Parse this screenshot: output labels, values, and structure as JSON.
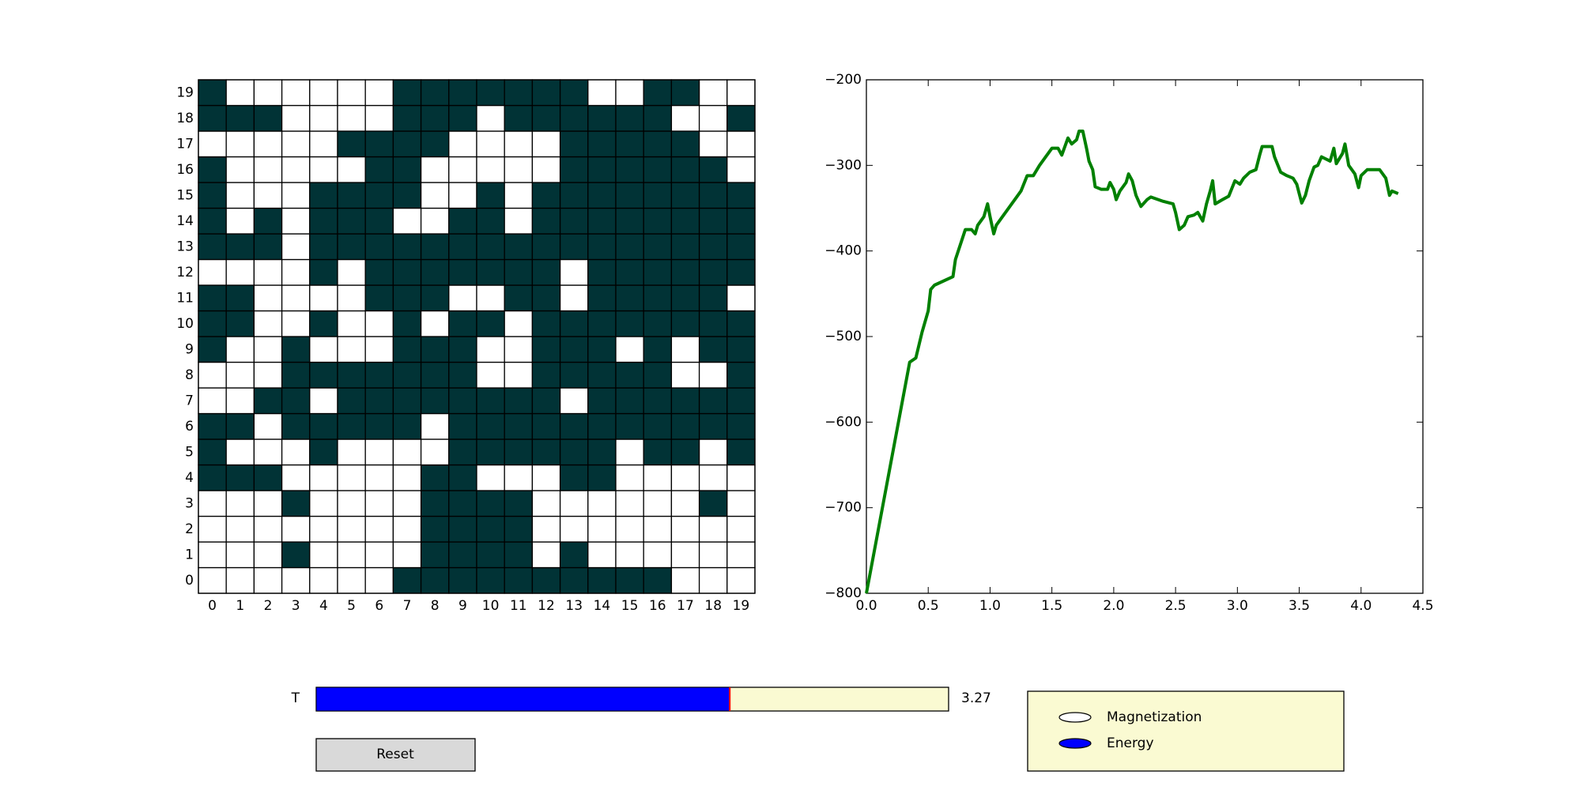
{
  "spin_grid": {
    "ticks": [
      0,
      1,
      2,
      3,
      4,
      5,
      6,
      7,
      8,
      9,
      10,
      11,
      12,
      13,
      14,
      15,
      16,
      17,
      18,
      19
    ],
    "up_color": "#013336",
    "down_color": "#ffffff",
    "rows": [
      [
        -1,
        -1,
        -1,
        -1,
        -1,
        -1,
        -1,
        1,
        1,
        1,
        1,
        1,
        1,
        1,
        1,
        1,
        1,
        -1,
        -1,
        -1
      ],
      [
        -1,
        -1,
        -1,
        1,
        -1,
        -1,
        -1,
        -1,
        1,
        1,
        1,
        1,
        -1,
        1,
        -1,
        -1,
        -1,
        -1,
        -1,
        -1
      ],
      [
        -1,
        -1,
        -1,
        -1,
        -1,
        -1,
        -1,
        -1,
        1,
        1,
        1,
        1,
        -1,
        -1,
        -1,
        -1,
        -1,
        -1,
        -1,
        -1
      ],
      [
        -1,
        -1,
        -1,
        1,
        -1,
        -1,
        -1,
        -1,
        1,
        1,
        1,
        1,
        -1,
        -1,
        -1,
        -1,
        -1,
        -1,
        1,
        -1
      ],
      [
        1,
        1,
        1,
        -1,
        -1,
        -1,
        -1,
        -1,
        1,
        1,
        -1,
        -1,
        -1,
        1,
        1,
        -1,
        -1,
        -1,
        -1,
        -1
      ],
      [
        1,
        -1,
        -1,
        -1,
        1,
        -1,
        -1,
        -1,
        -1,
        1,
        1,
        1,
        1,
        1,
        1,
        -1,
        1,
        1,
        -1,
        1
      ],
      [
        1,
        1,
        -1,
        1,
        1,
        1,
        1,
        1,
        -1,
        1,
        1,
        1,
        1,
        1,
        1,
        1,
        1,
        1,
        1,
        1
      ],
      [
        -1,
        -1,
        1,
        1,
        -1,
        1,
        1,
        1,
        1,
        1,
        1,
        1,
        1,
        -1,
        1,
        1,
        1,
        1,
        1,
        1
      ],
      [
        -1,
        -1,
        -1,
        1,
        1,
        1,
        1,
        1,
        1,
        1,
        -1,
        -1,
        1,
        1,
        1,
        1,
        1,
        -1,
        -1,
        1
      ],
      [
        1,
        -1,
        -1,
        1,
        -1,
        -1,
        -1,
        1,
        1,
        1,
        -1,
        -1,
        1,
        1,
        1,
        -1,
        1,
        -1,
        1,
        1
      ],
      [
        1,
        1,
        -1,
        -1,
        1,
        -1,
        -1,
        1,
        -1,
        1,
        1,
        -1,
        1,
        1,
        1,
        1,
        1,
        1,
        1,
        1
      ],
      [
        1,
        1,
        -1,
        -1,
        -1,
        -1,
        1,
        1,
        1,
        -1,
        -1,
        1,
        1,
        -1,
        1,
        1,
        1,
        1,
        1,
        -1
      ],
      [
        -1,
        -1,
        -1,
        -1,
        1,
        -1,
        1,
        1,
        1,
        1,
        1,
        1,
        1,
        -1,
        1,
        1,
        1,
        1,
        1,
        1
      ],
      [
        1,
        1,
        1,
        -1,
        1,
        1,
        1,
        1,
        1,
        1,
        1,
        1,
        1,
        1,
        1,
        1,
        1,
        1,
        1,
        1
      ],
      [
        1,
        -1,
        1,
        -1,
        1,
        1,
        1,
        -1,
        -1,
        1,
        1,
        -1,
        1,
        1,
        1,
        1,
        1,
        1,
        1,
        1
      ],
      [
        1,
        -1,
        -1,
        -1,
        1,
        1,
        1,
        1,
        -1,
        -1,
        1,
        -1,
        1,
        1,
        1,
        1,
        1,
        1,
        1,
        1
      ],
      [
        1,
        -1,
        -1,
        -1,
        -1,
        -1,
        1,
        1,
        -1,
        -1,
        -1,
        -1,
        -1,
        1,
        1,
        1,
        1,
        1,
        1,
        -1
      ],
      [
        -1,
        -1,
        -1,
        -1,
        -1,
        1,
        1,
        1,
        1,
        -1,
        -1,
        -1,
        -1,
        1,
        1,
        1,
        1,
        1,
        -1,
        -1
      ],
      [
        1,
        1,
        1,
        -1,
        -1,
        -1,
        -1,
        1,
        1,
        1,
        -1,
        1,
        1,
        1,
        1,
        1,
        1,
        -1,
        -1,
        1
      ],
      [
        1,
        -1,
        -1,
        -1,
        -1,
        -1,
        -1,
        1,
        1,
        1,
        1,
        1,
        1,
        1,
        -1,
        -1,
        1,
        1,
        -1,
        -1
      ]
    ]
  },
  "chart_data": {
    "type": "line",
    "color": "#008000",
    "x": [
      0,
      0.35,
      0.4,
      0.45,
      0.5,
      0.52,
      0.55,
      0.7,
      0.72,
      0.8,
      0.85,
      0.88,
      0.9,
      0.95,
      0.98,
      1.0,
      1.03,
      1.05,
      1.1,
      1.2,
      1.25,
      1.3,
      1.35,
      1.4,
      1.5,
      1.55,
      1.58,
      1.63,
      1.66,
      1.7,
      1.72,
      1.75,
      1.78,
      1.8,
      1.83,
      1.85,
      1.9,
      1.95,
      1.97,
      2.0,
      2.02,
      2.05,
      2.1,
      2.12,
      2.15,
      2.18,
      2.22,
      2.27,
      2.3,
      2.4,
      2.48,
      2.5,
      2.53,
      2.57,
      2.6,
      2.65,
      2.68,
      2.72,
      2.75,
      2.78,
      2.8,
      2.82,
      2.88,
      2.93,
      2.98,
      3.02,
      3.05,
      3.1,
      3.15,
      3.18,
      3.2,
      3.28,
      3.3,
      3.35,
      3.4,
      3.45,
      3.48,
      3.52,
      3.55,
      3.58,
      3.62,
      3.65,
      3.68,
      3.75,
      3.78,
      3.8,
      3.85,
      3.87,
      3.9,
      3.95,
      3.98,
      4.0,
      4.05,
      4.15,
      4.2,
      4.23,
      4.25,
      4.3
    ],
    "values": [
      -800,
      -530,
      -525,
      -495,
      -470,
      -445,
      -440,
      -430,
      -410,
      -375,
      -375,
      -380,
      -370,
      -360,
      -345,
      -360,
      -380,
      -370,
      -360,
      -340,
      -330,
      -312,
      -312,
      -300,
      -280,
      -280,
      -288,
      -268,
      -275,
      -270,
      -260,
      -260,
      -280,
      -295,
      -305,
      -325,
      -328,
      -328,
      -320,
      -328,
      -340,
      -330,
      -320,
      -310,
      -318,
      -335,
      -348,
      -340,
      -337,
      -342,
      -345,
      -355,
      -375,
      -370,
      -360,
      -358,
      -355,
      -365,
      -345,
      -330,
      -318,
      -345,
      -340,
      -336,
      -318,
      -322,
      -315,
      -308,
      -305,
      -288,
      -278,
      -278,
      -290,
      -308,
      -312,
      -315,
      -322,
      -344,
      -335,
      -318,
      -302,
      -300,
      -290,
      -295,
      -280,
      -298,
      -286,
      -275,
      -300,
      -310,
      -326,
      -312,
      -305,
      -305,
      -315,
      -335,
      -330,
      -333
    ],
    "xlim": [
      0,
      4.5
    ],
    "ylim": [
      -800,
      -200
    ],
    "xticks": [
      {
        "value": 0,
        "label": "0.0"
      },
      {
        "value": 0.5,
        "label": "0.5"
      },
      {
        "value": 1,
        "label": "1.0"
      },
      {
        "value": 1.5,
        "label": "1.5"
      },
      {
        "value": 2,
        "label": "2.0"
      },
      {
        "value": 2.5,
        "label": "2.5"
      },
      {
        "value": 3,
        "label": "3.0"
      },
      {
        "value": 3.5,
        "label": "3.5"
      },
      {
        "value": 4,
        "label": "4.0"
      },
      {
        "value": 4.5,
        "label": "4.5"
      }
    ],
    "yticks": [
      {
        "value": -800,
        "label": "−800"
      },
      {
        "value": -700,
        "label": "−700"
      },
      {
        "value": -600,
        "label": "−600"
      },
      {
        "value": -500,
        "label": "−500"
      },
      {
        "value": -400,
        "label": "−400"
      },
      {
        "value": -300,
        "label": "−300"
      },
      {
        "value": -200,
        "label": "−200"
      }
    ]
  },
  "slider": {
    "label": "T",
    "value": 3.27,
    "min": 0,
    "max": 5,
    "color": "#0000ff"
  },
  "button": {
    "label": "Reset"
  },
  "radio": {
    "options": [
      "Magnetization",
      "Energy"
    ],
    "selected": 1,
    "color": "#0000ff"
  }
}
